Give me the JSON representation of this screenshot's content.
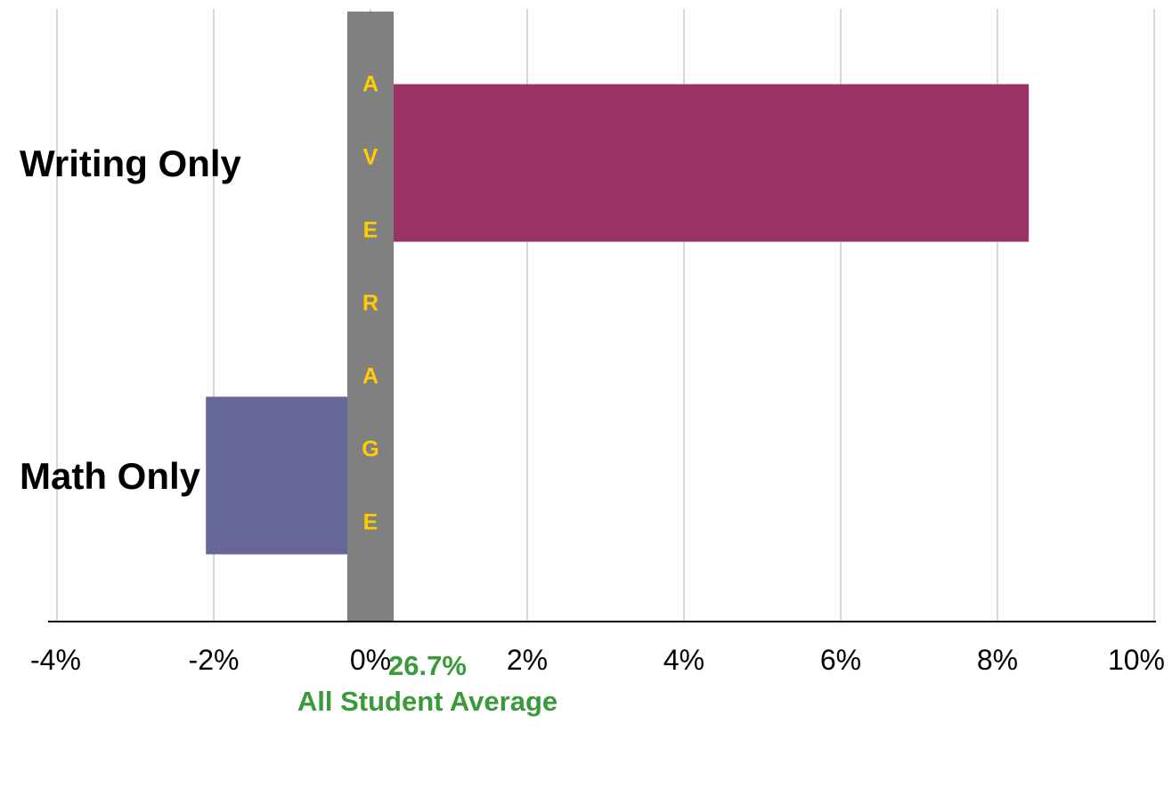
{
  "chart_data": {
    "type": "bar",
    "orientation": "horizontal",
    "categories": [
      "Writing Only",
      "Math Only"
    ],
    "values": [
      8.4,
      -2.1
    ],
    "unit": "%",
    "xlim": [
      -4,
      10
    ],
    "x_ticks": [
      "-4%",
      "-2%",
      "0%",
      "2%",
      "4%",
      "6%",
      "8%",
      "10%"
    ],
    "grid": "vertical",
    "colors": {
      "Writing Only": "#993366",
      "Math Only": "#666699",
      "average_band": "#808080",
      "average_letters": "#ffcc00",
      "footer": "#3a9a3a"
    },
    "average_band_letters": [
      "A",
      "V",
      "E",
      "R",
      "A",
      "G",
      "E"
    ],
    "average_value": "26.7%",
    "average_label": "All Student Average"
  }
}
